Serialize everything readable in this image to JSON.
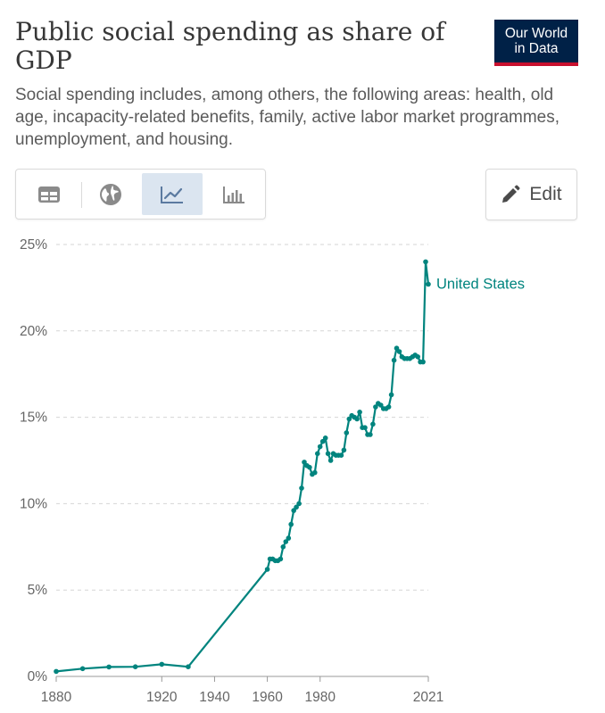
{
  "header": {
    "title": "Public social spending as share of GDP",
    "subtitle": "Social spending includes, among others, the following areas: health, old age, incapacity-related benefits, family, active labor market programmes, unemployment, and housing."
  },
  "logo": {
    "line1": "Our World",
    "line2": "in Data",
    "bg_color": "#002147",
    "accent_color": "#c8102e"
  },
  "toolbar": {
    "tabs": [
      {
        "name": "table",
        "icon": "table-icon"
      },
      {
        "name": "map",
        "icon": "globe-icon"
      },
      {
        "name": "line-chart",
        "icon": "line-chart-icon",
        "active": true
      },
      {
        "name": "bar-chart",
        "icon": "bar-chart-icon"
      }
    ],
    "active_color": "#dbe5f0",
    "edit_label": "Edit",
    "edit_icon": "pencil-icon"
  },
  "chart_data": {
    "type": "line",
    "title": "Public social spending as share of GDP",
    "xlabel": "",
    "ylabel": "",
    "xlim": [
      1880,
      2021
    ],
    "ylim": [
      0,
      25
    ],
    "x_ticks": [
      "1880",
      "1920",
      "1940",
      "1960",
      "1980",
      "2021"
    ],
    "x_tick_values": [
      1880,
      1920,
      1940,
      1960,
      1980,
      2021
    ],
    "y_ticks": [
      "0%",
      "5%",
      "10%",
      "15%",
      "20%",
      "25%"
    ],
    "y_tick_values": [
      0,
      5,
      10,
      15,
      20,
      25
    ],
    "grid": "horizontal-dashed",
    "series": [
      {
        "name": "United States",
        "color": "#00847e",
        "x": [
          1880,
          1890,
          1900,
          1910,
          1920,
          1930,
          1960,
          1961,
          1962,
          1963,
          1964,
          1965,
          1966,
          1967,
          1968,
          1969,
          1970,
          1971,
          1972,
          1973,
          1974,
          1975,
          1976,
          1977,
          1978,
          1979,
          1980,
          1981,
          1982,
          1983,
          1984,
          1985,
          1986,
          1987,
          1988,
          1989,
          1990,
          1991,
          1992,
          1993,
          1994,
          1995,
          1996,
          1997,
          1998,
          1999,
          2000,
          2001,
          2002,
          2003,
          2004,
          2005,
          2006,
          2007,
          2008,
          2009,
          2010,
          2011,
          2012,
          2013,
          2014,
          2015,
          2016,
          2017,
          2018,
          2019,
          2020,
          2021
        ],
        "values": [
          0.29,
          0.45,
          0.55,
          0.56,
          0.7,
          0.56,
          6.2,
          6.8,
          6.8,
          6.7,
          6.7,
          6.8,
          7.5,
          7.8,
          8.0,
          8.8,
          9.6,
          9.8,
          10.0,
          10.9,
          12.4,
          12.2,
          12.1,
          11.7,
          11.8,
          12.9,
          13.3,
          13.6,
          13.8,
          12.9,
          12.5,
          12.9,
          12.8,
          12.8,
          12.8,
          13.1,
          14.1,
          14.9,
          15.1,
          15.0,
          14.9,
          15.3,
          14.4,
          14.4,
          14.0,
          14.0,
          14.6,
          15.6,
          15.8,
          15.7,
          15.5,
          15.5,
          15.6,
          16.3,
          18.3,
          19.0,
          18.8,
          18.5,
          18.4,
          18.4,
          18.4,
          18.5,
          18.6,
          18.5,
          18.2,
          18.2,
          24.0,
          22.7
        ]
      }
    ],
    "legend": "end-of-line"
  }
}
